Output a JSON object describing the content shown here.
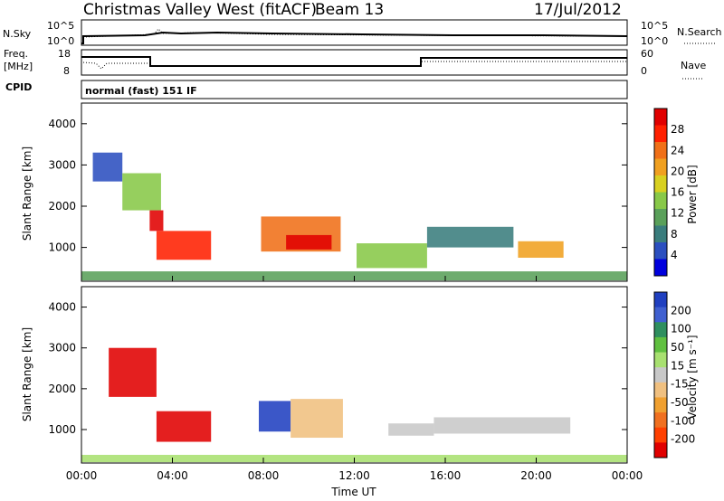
{
  "header": {
    "station": "Christmas Valley West (fitACF)",
    "beam": "Beam 13",
    "date": "17/Jul/2012"
  },
  "noise_panel": {
    "left_label": "N.Sky",
    "right_label": "N.Search",
    "ticks": [
      "10^5",
      "10^0"
    ]
  },
  "freq_panel": {
    "left_label_1": "Freq.",
    "left_label_2": "[MHz]",
    "left_ticks": [
      "18",
      "8"
    ],
    "right_label": "Nave",
    "right_ticks": [
      "60",
      "0"
    ]
  },
  "cpid": {
    "label": "CPID",
    "value": "normal (fast) 151 IF"
  },
  "colors": {
    "power_scale": [
      "#0000dd",
      "#2b4fbf",
      "#3a7d7d",
      "#5aa05a",
      "#88c848",
      "#d8d020",
      "#f0a020",
      "#f07018",
      "#ff2000",
      "#e00000"
    ],
    "velocity_scale": [
      "#2040c0",
      "#4060d0",
      "#2f8f5f",
      "#60c040",
      "#a8e070",
      "#c8c8c8",
      "#f0c080",
      "#f0a030",
      "#f07020",
      "#ff4000",
      "#e00000"
    ]
  },
  "chart_data": [
    {
      "type": "heatmap",
      "name": "power",
      "ylabel": "Slant Range [km]",
      "y_ticks": [
        "4000",
        "3000",
        "2000",
        "1000"
      ],
      "ylim": [
        180,
        4500
      ],
      "xlim": [
        "00:00",
        "24:00"
      ],
      "colorbar": {
        "label": "Power [dB]",
        "ticks": [
          "28",
          "24",
          "20",
          "16",
          "12",
          "8",
          "4"
        ],
        "range": [
          0,
          30
        ]
      },
      "regions": [
        {
          "t0": 0.5,
          "t1": 1.8,
          "r0": 2600,
          "r1": 3300,
          "level": 4
        },
        {
          "t0": 1.8,
          "t1": 3.5,
          "r0": 1900,
          "r1": 2800,
          "level": 12
        },
        {
          "t0": 3.0,
          "t1": 3.6,
          "r0": 1400,
          "r1": 1900,
          "level": 28
        },
        {
          "t0": 3.3,
          "t1": 5.7,
          "r0": 700,
          "r1": 1400,
          "level": 24
        },
        {
          "t0": 7.9,
          "t1": 11.4,
          "r0": 900,
          "r1": 1750,
          "level": 22
        },
        {
          "t0": 9.0,
          "t1": 11.0,
          "r0": 950,
          "r1": 1300,
          "level": 28
        },
        {
          "t0": 12.1,
          "t1": 15.2,
          "r0": 500,
          "r1": 1100,
          "level": 14
        },
        {
          "t0": 15.2,
          "t1": 19.0,
          "r0": 1000,
          "r1": 1500,
          "level": 6
        },
        {
          "t0": 19.2,
          "t1": 21.2,
          "r0": 750,
          "r1": 1150,
          "level": 20
        },
        {
          "t0": 0.0,
          "t1": 24.0,
          "r0": 200,
          "r1": 420,
          "level": 10
        }
      ]
    },
    {
      "type": "heatmap",
      "name": "velocity",
      "ylabel": "Slant Range [km]",
      "xlabel": "Time UT",
      "x_ticks": [
        "00:00",
        "04:00",
        "08:00",
        "12:00",
        "16:00",
        "20:00",
        "00:00"
      ],
      "y_ticks": [
        "4000",
        "3000",
        "2000",
        "1000"
      ],
      "ylim": [
        180,
        4500
      ],
      "xlim": [
        "00:00",
        "24:00"
      ],
      "colorbar": {
        "label": "Velocity [m s⁻¹]",
        "ticks": [
          "200",
          "100",
          "50",
          "15",
          "-15",
          "-50",
          "-100",
          "-200"
        ],
        "range": [
          -250,
          250
        ]
      },
      "regions": [
        {
          "t0": 1.2,
          "t1": 3.3,
          "r0": 1800,
          "r1": 3000,
          "value": -220
        },
        {
          "t0": 3.3,
          "t1": 5.7,
          "r0": 700,
          "r1": 1450,
          "value": -230
        },
        {
          "t0": 7.8,
          "t1": 9.2,
          "r0": 950,
          "r1": 1700,
          "value": 220
        },
        {
          "t0": 9.2,
          "t1": 11.5,
          "r0": 800,
          "r1": 1750,
          "value": -60
        },
        {
          "t0": 13.5,
          "t1": 15.5,
          "r0": 850,
          "r1": 1150,
          "value": 0
        },
        {
          "t0": 15.5,
          "t1": 21.5,
          "r0": 900,
          "r1": 1300,
          "value": -20
        },
        {
          "t0": 0.0,
          "t1": 24.0,
          "r0": 200,
          "r1": 380,
          "value": 40
        }
      ]
    }
  ]
}
